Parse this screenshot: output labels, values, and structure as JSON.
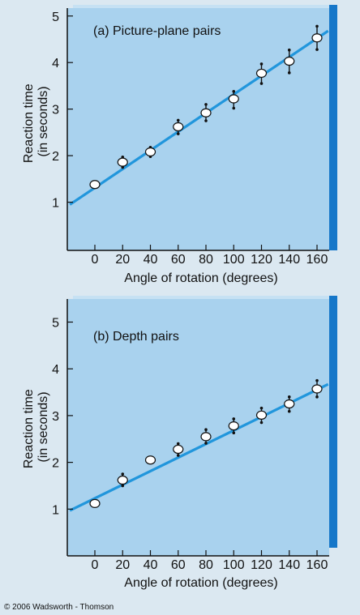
{
  "credit": "© 2006 Wadsworth - Thomson",
  "colors": {
    "plot_bg": "#a9d2ee",
    "band": "#c6e1f3",
    "line": "#2196dc",
    "shadow": "#1677c9",
    "axis": "#111111",
    "marker_fill": "#ffffff"
  },
  "chart_data": [
    {
      "type": "line",
      "title": "(a) Picture-plane pairs",
      "xlabel": "Angle of rotation (degrees)",
      "ylabel": "Reaction time (in seconds)",
      "ylabel_lines": [
        "Reaction time",
        "(in seconds)"
      ],
      "xlim": [
        -18,
        168
      ],
      "ylim": [
        0,
        5.1
      ],
      "x_ticks": [
        0,
        20,
        40,
        60,
        80,
        100,
        120,
        140,
        160
      ],
      "y_ticks": [
        1,
        2,
        3,
        4,
        5
      ],
      "grid": false,
      "x": [
        0,
        20,
        40,
        60,
        80,
        100,
        120,
        140,
        160
      ],
      "y": [
        1.38,
        1.86,
        2.08,
        2.62,
        2.92,
        3.22,
        3.77,
        4.03,
        4.53
      ],
      "error_low": [
        null,
        1.75,
        1.98,
        2.47,
        2.75,
        3.02,
        3.55,
        3.78,
        4.28
      ],
      "error_high": [
        null,
        1.97,
        2.18,
        2.76,
        3.1,
        3.38,
        3.97,
        4.27,
        4.78
      ],
      "fit_line": {
        "x": [
          -18,
          168
        ],
        "y": [
          0.95,
          4.68
        ]
      }
    },
    {
      "type": "line",
      "title": "(b) Depth pairs",
      "xlabel": "Angle of rotation (degrees)",
      "ylabel": "Reaction time (in seconds)",
      "ylabel_lines": [
        "Reaction time",
        "(in seconds)"
      ],
      "xlim": [
        -18,
        168
      ],
      "ylim": [
        0,
        5.1
      ],
      "x_ticks": [
        0,
        20,
        40,
        60,
        80,
        100,
        120,
        140,
        160
      ],
      "y_ticks": [
        1,
        2,
        3,
        4,
        5
      ],
      "grid": false,
      "x": [
        0,
        20,
        40,
        60,
        80,
        100,
        120,
        140,
        160
      ],
      "y": [
        1.12,
        1.62,
        2.05,
        2.28,
        2.55,
        2.78,
        3.01,
        3.25,
        3.57
      ],
      "error_low": [
        null,
        1.5,
        null,
        2.15,
        2.41,
        2.63,
        2.85,
        3.09,
        3.4
      ],
      "error_high": [
        null,
        1.75,
        null,
        2.4,
        2.7,
        2.93,
        3.16,
        3.4,
        3.75
      ],
      "fit_line": {
        "x": [
          -18,
          168
        ],
        "y": [
          0.97,
          3.67
        ]
      }
    }
  ]
}
